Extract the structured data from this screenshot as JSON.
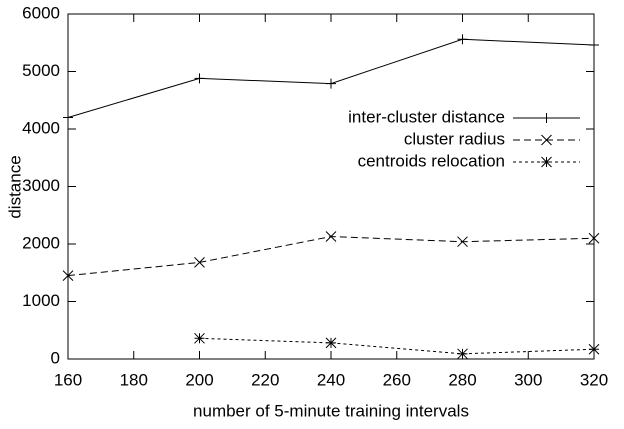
{
  "chart_data": {
    "type": "line",
    "x_label": "number of 5-minute training intervals",
    "y_label": "distance",
    "x": [
      160,
      200,
      240,
      280,
      320
    ],
    "series": [
      {
        "name": "inter-cluster distance",
        "color": "#000000",
        "style": "solid",
        "marker": "plus",
        "values": [
          4200,
          4880,
          4790,
          5560,
          5460
        ]
      },
      {
        "name": "cluster radius",
        "color": "#000000",
        "style": "dashed",
        "marker": "cross",
        "values": [
          1450,
          1680,
          2130,
          2040,
          2100
        ]
      },
      {
        "name": "centroids relocation",
        "color": "#000000",
        "style": "dotted",
        "marker": "star",
        "values": [
          null,
          360,
          280,
          90,
          170
        ]
      }
    ],
    "xlim": [
      160,
      320
    ],
    "xticks": [
      160,
      180,
      200,
      220,
      240,
      260,
      280,
      300,
      320
    ],
    "ylim": [
      0,
      6000
    ],
    "yticks": [
      0,
      1000,
      2000,
      3000,
      4000,
      5000,
      6000
    ],
    "grid": false,
    "legend": "upper right"
  }
}
